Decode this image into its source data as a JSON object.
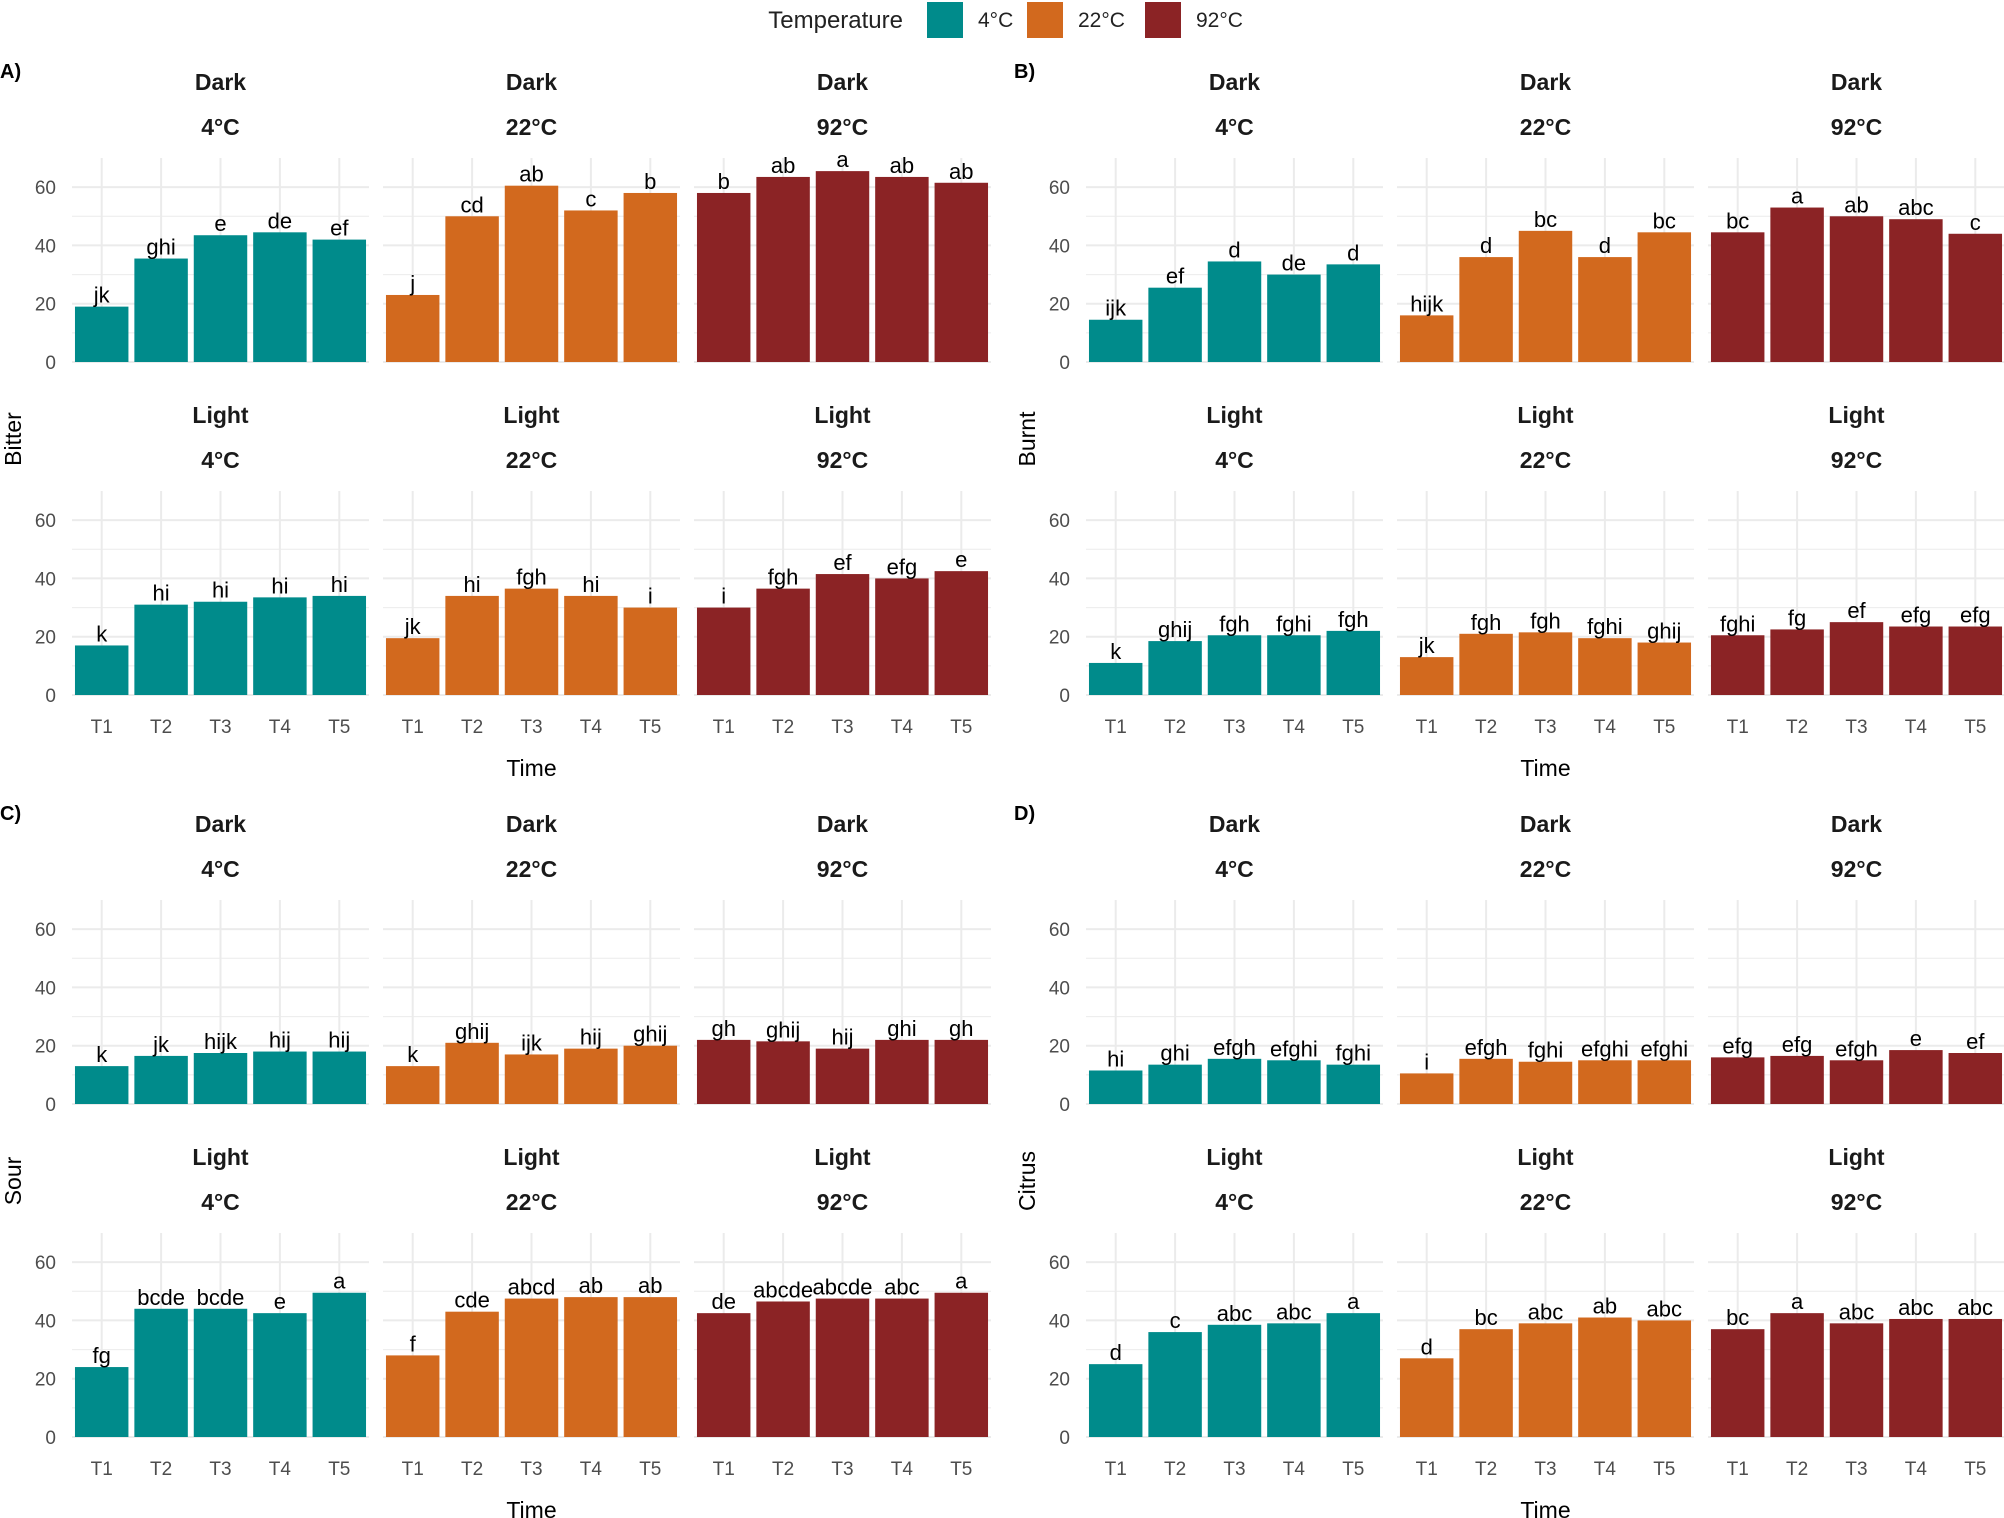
{
  "legend": {
    "title": "Temperature",
    "entries": [
      {
        "label": "4°C",
        "color": "#008b8b"
      },
      {
        "label": "22°C",
        "color": "#d2691e"
      },
      {
        "label": "92°C",
        "color": "#8b2325"
      }
    ]
  },
  "chart_data": [
    {
      "panel": "A)",
      "type": "bar",
      "ylabel": "Bitter",
      "xlabel": "Time",
      "ylim": [
        0,
        70
      ],
      "yticks": [
        0,
        20,
        40,
        60
      ],
      "categories": [
        "T1",
        "T2",
        "T3",
        "T4",
        "T5"
      ],
      "facets": [
        {
          "light": "Dark",
          "temp": "4°C",
          "color": "#008b8b",
          "values": [
            19,
            35.5,
            43.5,
            44.5,
            42
          ],
          "labels": [
            "jk",
            "ghi",
            "e",
            "de",
            "ef"
          ]
        },
        {
          "light": "Dark",
          "temp": "22°C",
          "color": "#d2691e",
          "values": [
            23,
            50,
            60.5,
            52,
            58
          ],
          "labels": [
            "j",
            "cd",
            "ab",
            "c",
            "b"
          ]
        },
        {
          "light": "Dark",
          "temp": "92°C",
          "color": "#8b2325",
          "values": [
            58,
            63.5,
            65.5,
            63.5,
            61.5
          ],
          "labels": [
            "b",
            "ab",
            "a",
            "ab",
            "ab"
          ]
        },
        {
          "light": "Light",
          "temp": "4°C",
          "color": "#008b8b",
          "values": [
            17,
            31,
            32,
            33.5,
            34
          ],
          "labels": [
            "k",
            "hi",
            "hi",
            "hi",
            "hi"
          ]
        },
        {
          "light": "Light",
          "temp": "22°C",
          "color": "#d2691e",
          "values": [
            19.5,
            34,
            36.5,
            34,
            30
          ],
          "labels": [
            "jk",
            "hi",
            "fgh",
            "hi",
            "i"
          ]
        },
        {
          "light": "Light",
          "temp": "92°C",
          "color": "#8b2325",
          "values": [
            30,
            36.5,
            41.5,
            40,
            42.5
          ],
          "labels": [
            "i",
            "fgh",
            "ef",
            "efg",
            "e"
          ]
        }
      ]
    },
    {
      "panel": "B)",
      "type": "bar",
      "ylabel": "Burnt",
      "xlabel": "Time",
      "ylim": [
        0,
        70
      ],
      "yticks": [
        0,
        20,
        40,
        60
      ],
      "categories": [
        "T1",
        "T2",
        "T3",
        "T4",
        "T5"
      ],
      "facets": [
        {
          "light": "Dark",
          "temp": "4°C",
          "color": "#008b8b",
          "values": [
            14.5,
            25.5,
            34.5,
            30,
            33.5
          ],
          "labels": [
            "ijk",
            "ef",
            "d",
            "de",
            "d"
          ]
        },
        {
          "light": "Dark",
          "temp": "22°C",
          "color": "#d2691e",
          "values": [
            16,
            36,
            45,
            36,
            44.5
          ],
          "labels": [
            "hijk",
            "d",
            "bc",
            "d",
            "bc"
          ]
        },
        {
          "light": "Dark",
          "temp": "92°C",
          "color": "#8b2325",
          "values": [
            44.5,
            53,
            50,
            49,
            44
          ],
          "labels": [
            "bc",
            "a",
            "ab",
            "abc",
            "c"
          ]
        },
        {
          "light": "Light",
          "temp": "4°C",
          "color": "#008b8b",
          "values": [
            11,
            18.5,
            20.5,
            20.5,
            22
          ],
          "labels": [
            "k",
            "ghij",
            "fgh",
            "fghi",
            "fgh"
          ]
        },
        {
          "light": "Light",
          "temp": "22°C",
          "color": "#d2691e",
          "values": [
            13,
            21,
            21.5,
            19.5,
            18
          ],
          "labels": [
            "jk",
            "fgh",
            "fgh",
            "fghi",
            "ghij"
          ]
        },
        {
          "light": "Light",
          "temp": "92°C",
          "color": "#8b2325",
          "values": [
            20.5,
            22.5,
            25,
            23.5,
            23.5
          ],
          "labels": [
            "fghi",
            "fg",
            "ef",
            "efg",
            "efg"
          ]
        }
      ]
    },
    {
      "panel": "C)",
      "type": "bar",
      "ylabel": "Sour",
      "xlabel": "Time",
      "ylim": [
        0,
        70
      ],
      "yticks": [
        0,
        20,
        40,
        60
      ],
      "categories": [
        "T1",
        "T2",
        "T3",
        "T4",
        "T5"
      ],
      "facets": [
        {
          "light": "Dark",
          "temp": "4°C",
          "color": "#008b8b",
          "values": [
            13,
            16.5,
            17.5,
            18,
            18
          ],
          "labels": [
            "k",
            "jk",
            "hijk",
            "hij",
            "hij"
          ]
        },
        {
          "light": "Dark",
          "temp": "22°C",
          "color": "#d2691e",
          "values": [
            13,
            21,
            17,
            19,
            20
          ],
          "labels": [
            "k",
            "ghij",
            "ijk",
            "hij",
            "ghij"
          ]
        },
        {
          "light": "Dark",
          "temp": "92°C",
          "color": "#8b2325",
          "values": [
            22,
            21.5,
            19,
            22,
            22
          ],
          "labels": [
            "gh",
            "ghij",
            "hij",
            "ghi",
            "gh"
          ]
        },
        {
          "light": "Light",
          "temp": "4°C",
          "color": "#008b8b",
          "values": [
            24,
            44,
            44,
            42.5,
            49.5
          ],
          "labels": [
            "fg",
            "bcde",
            "bcde",
            "e",
            "a"
          ]
        },
        {
          "light": "Light",
          "temp": "22°C",
          "color": "#d2691e",
          "values": [
            28,
            43,
            47.5,
            48,
            48
          ],
          "labels": [
            "f",
            "cde",
            "abcd",
            "ab",
            "ab"
          ]
        },
        {
          "light": "Light",
          "temp": "92°C",
          "color": "#8b2325",
          "values": [
            42.5,
            46.5,
            47.5,
            47.5,
            49.5
          ],
          "labels": [
            "de",
            "abcde",
            "abcde",
            "abc",
            "a"
          ]
        }
      ]
    },
    {
      "panel": "D)",
      "type": "bar",
      "ylabel": "Citrus",
      "xlabel": "Time",
      "ylim": [
        0,
        70
      ],
      "yticks": [
        0,
        20,
        40,
        60
      ],
      "categories": [
        "T1",
        "T2",
        "T3",
        "T4",
        "T5"
      ],
      "facets": [
        {
          "light": "Dark",
          "temp": "4°C",
          "color": "#008b8b",
          "values": [
            11.5,
            13.5,
            15.5,
            15,
            13.5
          ],
          "labels": [
            "hi",
            "ghi",
            "efgh",
            "efghi",
            "fghi"
          ]
        },
        {
          "light": "Dark",
          "temp": "22°C",
          "color": "#d2691e",
          "values": [
            10.5,
            15.5,
            14.5,
            15,
            15
          ],
          "labels": [
            "i",
            "efgh",
            "fghi",
            "efghi",
            "efghi"
          ]
        },
        {
          "light": "Dark",
          "temp": "92°C",
          "color": "#8b2325",
          "values": [
            16,
            16.5,
            15,
            18.5,
            17.5
          ],
          "labels": [
            "efg",
            "efg",
            "efgh",
            "e",
            "ef"
          ]
        },
        {
          "light": "Light",
          "temp": "4°C",
          "color": "#008b8b",
          "values": [
            25,
            36,
            38.5,
            39,
            42.5
          ],
          "labels": [
            "d",
            "c",
            "abc",
            "abc",
            "a"
          ]
        },
        {
          "light": "Light",
          "temp": "22°C",
          "color": "#d2691e",
          "values": [
            27,
            37,
            39,
            41,
            40
          ],
          "labels": [
            "d",
            "bc",
            "abc",
            "ab",
            "abc"
          ]
        },
        {
          "light": "Light",
          "temp": "92°C",
          "color": "#8b2325",
          "values": [
            37,
            42.5,
            39,
            40.5,
            40.5
          ],
          "labels": [
            "bc",
            "a",
            "abc",
            "abc",
            "abc"
          ]
        }
      ]
    }
  ]
}
